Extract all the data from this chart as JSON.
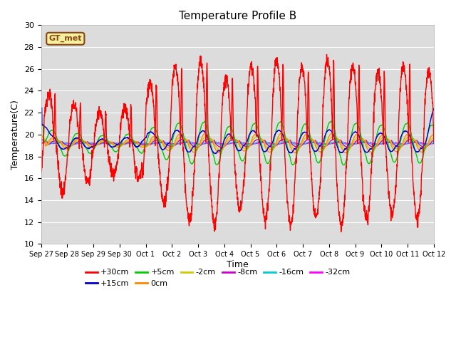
{
  "title": "Temperature Profile B",
  "xlabel": "Time",
  "ylabel": "Temperature(C)",
  "ylim": [
    10,
    30
  ],
  "yticks": [
    10,
    12,
    14,
    16,
    18,
    20,
    22,
    24,
    26,
    28,
    30
  ],
  "bg_color": "#dcdcdc",
  "legend_label": "GT_met",
  "series_order": [
    "+30cm",
    "+15cm",
    "+5cm",
    "0cm",
    "-2cm",
    "-8cm",
    "-16cm",
    "-32cm"
  ],
  "colors": {
    "+30cm": "#ff0000",
    "+15cm": "#0000cc",
    "+5cm": "#00cc00",
    "0cm": "#ff8800",
    "-2cm": "#cccc00",
    "-8cm": "#cc00cc",
    "-16cm": "#00cccc",
    "-32cm": "#ff00ff"
  },
  "amplitudes": {
    "+30cm": 1.0,
    "+15cm": 0.72,
    "+5cm": 0.35,
    "0cm": 0.12,
    "-2cm": 0.08,
    "-8cm": 0.05,
    "-16cm": 0.02,
    "-32cm": 0.01
  },
  "phase_delays": {
    "+30cm": 0.0,
    "+15cm": 0.04,
    "+5cm": 0.1,
    "0cm": 0.18,
    "-2cm": 0.22,
    "-8cm": 0.28,
    "-16cm": 0.35,
    "-32cm": 0.45
  },
  "base_mean": 19.2,
  "xtick_labels": [
    "Sep 27",
    "Sep 28",
    "Sep 29",
    "Sep 30",
    "Oct 1",
    "Oct 2",
    "Oct 3",
    "Oct 4",
    "Oct 5",
    "Oct 6",
    "Oct 7",
    "Oct 8",
    "Oct 9",
    "Oct 10",
    "Oct 11",
    "Oct 12"
  ],
  "n_days": 15.5,
  "n_points": 2000
}
